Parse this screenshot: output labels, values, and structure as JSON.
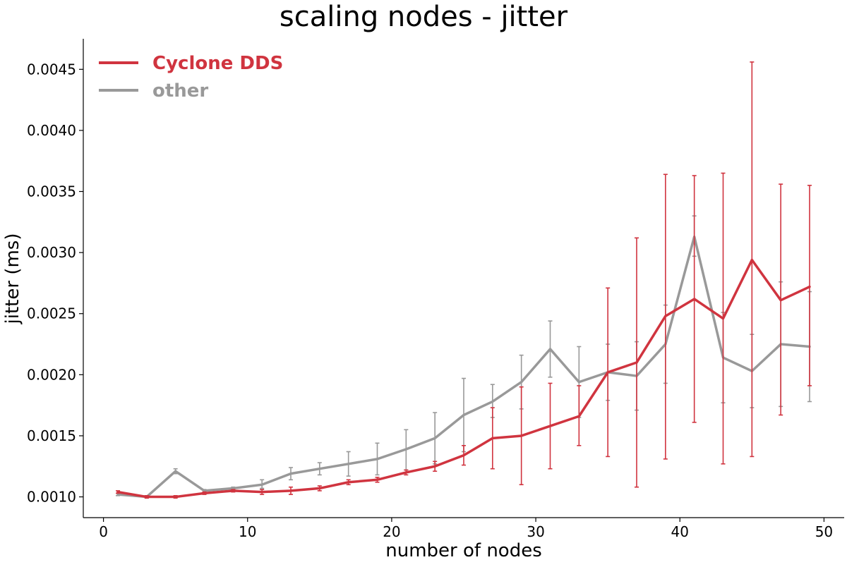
{
  "chart_data": {
    "type": "line",
    "title": "scaling nodes - jitter",
    "xlabel": "number of nodes",
    "ylabel": "jitter (ms)",
    "xlim": [
      -1.4,
      51.4
    ],
    "ylim": [
      0.00083,
      0.00475
    ],
    "xticks": [
      0,
      10,
      20,
      30,
      40,
      50
    ],
    "yticks": [
      0.001,
      0.0015,
      0.002,
      0.0025,
      0.003,
      0.0035,
      0.004,
      0.0045
    ],
    "xtick_labels": [
      "0",
      "10",
      "20",
      "30",
      "40",
      "50"
    ],
    "ytick_labels": [
      "0.0010",
      "0.0015",
      "0.0020",
      "0.0025",
      "0.0030",
      "0.0035",
      "0.0040",
      "0.0045"
    ],
    "grid": false,
    "legend_position": "upper-left",
    "x": [
      1,
      3,
      5,
      7,
      9,
      11,
      13,
      15,
      17,
      19,
      21,
      23,
      25,
      27,
      29,
      31,
      33,
      35,
      37,
      39,
      41,
      43,
      45,
      47,
      49
    ],
    "series": [
      {
        "name": "other",
        "color": "#999999",
        "values": [
          0.00102,
          0.001,
          0.00121,
          0.00105,
          0.00107,
          0.0011,
          0.00119,
          0.00123,
          0.00127,
          0.00131,
          0.00139,
          0.00148,
          0.00167,
          0.00178,
          0.00194,
          0.00221,
          0.00194,
          0.00202,
          0.00199,
          0.00225,
          0.00313,
          0.00214,
          0.00203,
          0.00225,
          0.00223
        ],
        "error_low": [
          0.00101,
          0.00099,
          0.00119,
          0.00104,
          0.00106,
          0.00107,
          0.00114,
          0.00118,
          0.00117,
          0.00118,
          0.00122,
          0.00127,
          0.00137,
          0.00165,
          0.00172,
          0.00198,
          0.00165,
          0.00179,
          0.00171,
          0.00193,
          0.00297,
          0.00177,
          0.00173,
          0.00174,
          0.00178
        ],
        "error_high": [
          0.00103,
          0.00101,
          0.00123,
          0.00106,
          0.00108,
          0.00114,
          0.00124,
          0.00128,
          0.00137,
          0.00144,
          0.00155,
          0.00169,
          0.00197,
          0.00192,
          0.00216,
          0.00244,
          0.00223,
          0.00225,
          0.00227,
          0.00257,
          0.0033,
          0.00251,
          0.00233,
          0.00276,
          0.00268
        ]
      },
      {
        "name": "Cyclone DDS",
        "color": "#d0343f",
        "values": [
          0.00104,
          0.001,
          0.001,
          0.00103,
          0.00105,
          0.00104,
          0.00105,
          0.00107,
          0.00112,
          0.00114,
          0.0012,
          0.00125,
          0.00134,
          0.00148,
          0.0015,
          0.00158,
          0.00166,
          0.00202,
          0.0021,
          0.00248,
          0.00262,
          0.00246,
          0.00294,
          0.00261,
          0.00272
        ],
        "error_low": [
          0.00103,
          0.00099,
          0.00099,
          0.00102,
          0.00104,
          0.00102,
          0.00102,
          0.00105,
          0.0011,
          0.00112,
          0.00118,
          0.00121,
          0.00126,
          0.00123,
          0.0011,
          0.00123,
          0.00142,
          0.00133,
          0.00108,
          0.00131,
          0.00161,
          0.00127,
          0.00133,
          0.00167,
          0.00191
        ],
        "error_high": [
          0.00105,
          0.00101,
          0.00101,
          0.00104,
          0.00106,
          0.00106,
          0.00108,
          0.00109,
          0.00114,
          0.00116,
          0.00122,
          0.00129,
          0.00142,
          0.00173,
          0.0019,
          0.00193,
          0.00191,
          0.00271,
          0.00312,
          0.00364,
          0.00363,
          0.00365,
          0.00456,
          0.00356,
          0.00355
        ]
      }
    ],
    "legend_order": [
      "Cyclone DDS",
      "other"
    ]
  }
}
